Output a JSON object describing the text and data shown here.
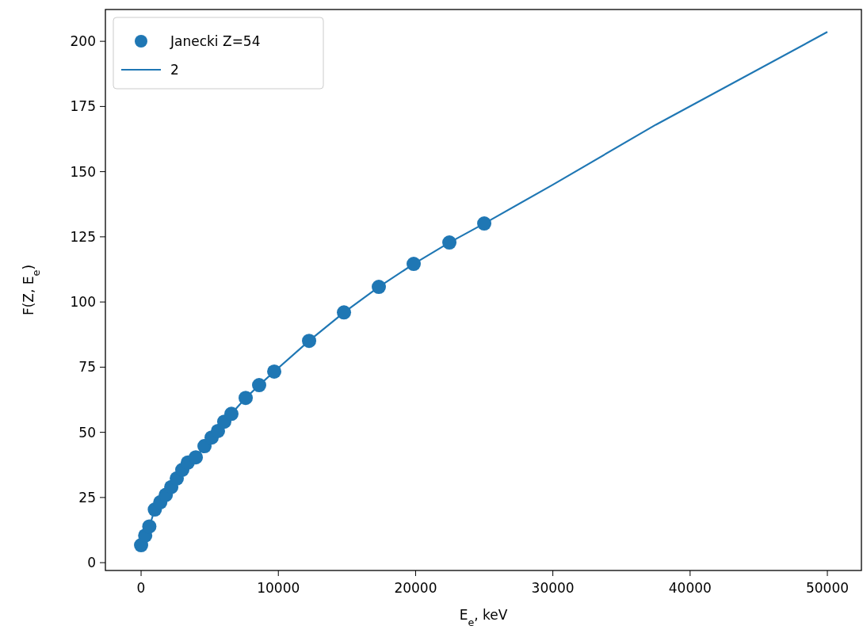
{
  "chart_data": {
    "type": "scatter",
    "xlabel": "E$_{e}$, keV",
    "ylabel": "F(Z, E$_{e}$)",
    "xlim": [
      -2600,
      52480
    ],
    "ylim": [
      -3,
      212.2
    ],
    "xticks": [
      0,
      10000,
      20000,
      30000,
      40000,
      50000
    ],
    "yticks": [
      0,
      25,
      50,
      75,
      100,
      125,
      150,
      175,
      200
    ],
    "grid": false,
    "legend": "top left",
    "marker": "circle",
    "series": [
      {
        "name": "Janecki Z=54",
        "color": "#1f77b4",
        "x": [
          0,
          300,
          600,
          1000,
          1400,
          1800,
          2200,
          2600,
          3000,
          3400,
          3984,
          4620,
          5140,
          5600,
          6060,
          6580,
          7620,
          8600,
          9700,
          12240,
          14780,
          17320,
          19860,
          22460,
          25000
        ],
        "values": [
          6.7,
          10.4,
          13.9,
          20.4,
          23.2,
          26,
          29,
          32.3,
          35.6,
          38.4,
          40.4,
          44.7,
          48,
          50.5,
          54.1,
          57.1,
          63.2,
          68.1,
          73.3,
          85.1,
          96,
          105.8,
          114.6,
          122.8,
          130.1
        ]
      },
      {
        "name": "2",
        "type": "line",
        "color": "#1f77b4",
        "marker": "none",
        "line_style": "solid",
        "x": [
          0,
          500,
          1000,
          2000,
          3000,
          3984,
          5140,
          6580,
          7620,
          8600,
          9700,
          12240,
          14780,
          17320,
          19860,
          22460,
          25000,
          30000,
          37500,
          50000
        ],
        "values": [
          6.7,
          12.2,
          20.4,
          27.4,
          35.6,
          40.4,
          48,
          57.1,
          63.2,
          68.1,
          73.3,
          85.1,
          96,
          105.8,
          114.6,
          122.8,
          130.1,
          145,
          168,
          203.6
        ]
      }
    ]
  }
}
